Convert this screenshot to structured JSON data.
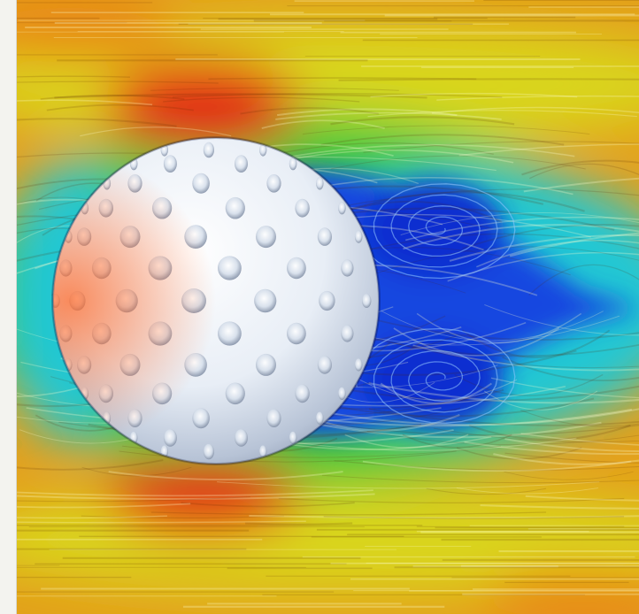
{
  "image": {
    "subject": "flow-visualization",
    "palette": {
      "far_field": "#e3a11b",
      "mid_field": "#d9d51e",
      "near_field": "#38c93b",
      "shear": "#22c7d4",
      "wake": "#1246e0",
      "stagnation": "#e32a12",
      "ball": "#f4f4f4"
    }
  }
}
